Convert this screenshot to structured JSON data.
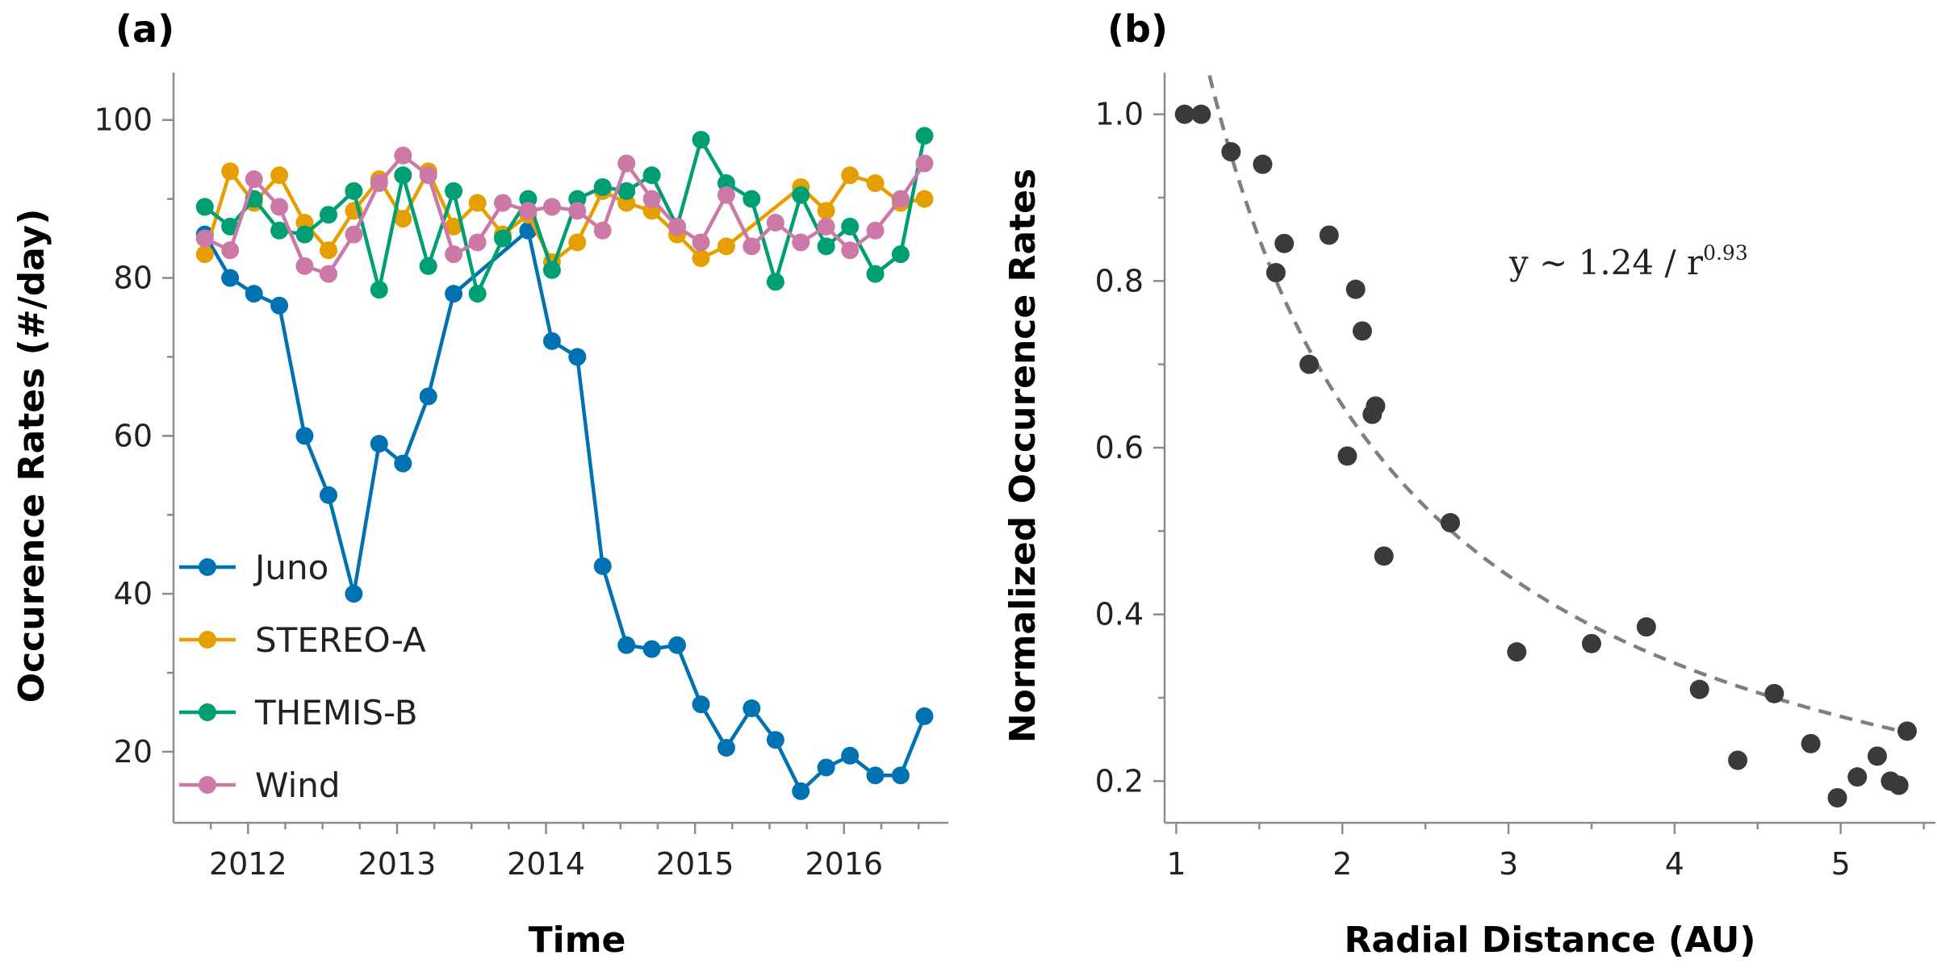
{
  "panel_a": {
    "label": "(a)",
    "legend": [
      {
        "name": "Juno",
        "color": "#0072b2"
      },
      {
        "name": "STEREO-A",
        "color": "#e69f00"
      },
      {
        "name": "THEMIS-B",
        "color": "#009e73"
      },
      {
        "name": "Wind",
        "color": "#cc79a7"
      }
    ]
  },
  "panel_b": {
    "label": "(b)",
    "fit_equation": {
      "base": "y  ∼  1.24  /  r",
      "exponent": "0.93"
    }
  },
  "chart_data": [
    {
      "type": "line",
      "xlabel": "Time",
      "ylabel": "Occurence Rates (#/day)",
      "xlim": [
        2011.5,
        2016.7
      ],
      "ylim": [
        11,
        106
      ],
      "xticks": [
        2012,
        2013,
        2014,
        2015,
        2016
      ],
      "yticks": [
        20,
        40,
        60,
        80,
        100
      ],
      "grid": false,
      "legend_position": "lower-left",
      "x": [
        2011.71,
        2011.88,
        2012.04,
        2012.21,
        2012.38,
        2012.54,
        2012.71,
        2012.88,
        2013.04,
        2013.21,
        2013.38,
        2013.54,
        2013.71,
        2013.88,
        2014.04,
        2014.21,
        2014.38,
        2014.54,
        2014.71,
        2014.88,
        2015.04,
        2015.21,
        2015.38,
        2015.54,
        2015.71,
        2015.88,
        2016.04,
        2016.21,
        2016.38,
        2016.54
      ],
      "series": [
        {
          "name": "Juno",
          "color": "#0072b2",
          "values": [
            85.5,
            80.0,
            78.0,
            76.5,
            60.0,
            52.5,
            40.0,
            59.0,
            56.5,
            65.0,
            78.0,
            null,
            null,
            86.0,
            72.0,
            70.0,
            43.5,
            33.5,
            33.0,
            33.5,
            26.0,
            20.5,
            25.5,
            21.5,
            15.0,
            18.0,
            19.5,
            17.0,
            17.0,
            24.5
          ]
        },
        {
          "name": "STEREO-A",
          "color": "#e69f00",
          "values": [
            83.0,
            93.5,
            89.5,
            93.0,
            87.0,
            83.5,
            88.5,
            92.5,
            87.5,
            93.5,
            86.5,
            89.5,
            85.5,
            88.0,
            82.0,
            84.5,
            91.0,
            89.5,
            88.5,
            85.5,
            82.5,
            84.0,
            null,
            null,
            91.5,
            88.5,
            93.0,
            92.0,
            89.5,
            90.0
          ]
        },
        {
          "name": "THEMIS-B",
          "color": "#009e73",
          "values": [
            89.0,
            86.5,
            90.0,
            86.0,
            85.5,
            88.0,
            91.0,
            78.5,
            93.0,
            81.5,
            91.0,
            78.0,
            85.0,
            90.0,
            81.0,
            90.0,
            91.5,
            91.0,
            93.0,
            86.5,
            97.5,
            92.0,
            90.0,
            79.5,
            90.5,
            84.0,
            86.5,
            80.5,
            83.0,
            98.0
          ]
        },
        {
          "name": "Wind",
          "color": "#cc79a7",
          "values": [
            85.0,
            83.5,
            92.5,
            89.0,
            81.5,
            80.5,
            85.5,
            92.0,
            95.5,
            93.0,
            83.0,
            84.5,
            89.5,
            88.5,
            89.0,
            88.5,
            86.0,
            94.5,
            90.0,
            86.5,
            84.5,
            90.5,
            84.0,
            87.0,
            84.5,
            86.5,
            83.5,
            86.0,
            90.0,
            94.5
          ]
        }
      ]
    },
    {
      "type": "scatter",
      "xlabel": "Radial Distance (AU)",
      "ylabel": "Normalized Occurence Rates",
      "xlim": [
        0.93,
        5.57
      ],
      "ylim": [
        0.15,
        1.05
      ],
      "xticks": [
        1,
        2,
        3,
        4,
        5
      ],
      "yticks": [
        0.2,
        0.4,
        0.6,
        0.8,
        1.0
      ],
      "grid": false,
      "series": [
        {
          "name": "",
          "color": "#3a3a3a",
          "x": [
            1.05,
            1.15,
            1.33,
            1.52,
            1.6,
            1.65,
            1.8,
            1.92,
            2.03,
            2.08,
            2.12,
            2.18,
            2.2,
            2.25,
            2.65,
            3.05,
            3.5,
            3.83,
            4.15,
            4.38,
            4.6,
            4.82,
            4.98,
            5.1,
            5.22,
            5.3,
            5.35,
            5.4
          ],
          "y": [
            1.0,
            1.0,
            0.955,
            0.94,
            0.81,
            0.845,
            0.7,
            0.855,
            0.59,
            0.79,
            0.74,
            0.64,
            0.65,
            0.47,
            0.51,
            0.355,
            0.365,
            0.385,
            0.31,
            0.225,
            0.305,
            0.245,
            0.18,
            0.205,
            0.23,
            0.2,
            0.195,
            0.26
          ]
        }
      ],
      "fit": {
        "a": 1.24,
        "b": 0.93,
        "color": "#7f7f7f",
        "style": "dashed"
      }
    }
  ]
}
